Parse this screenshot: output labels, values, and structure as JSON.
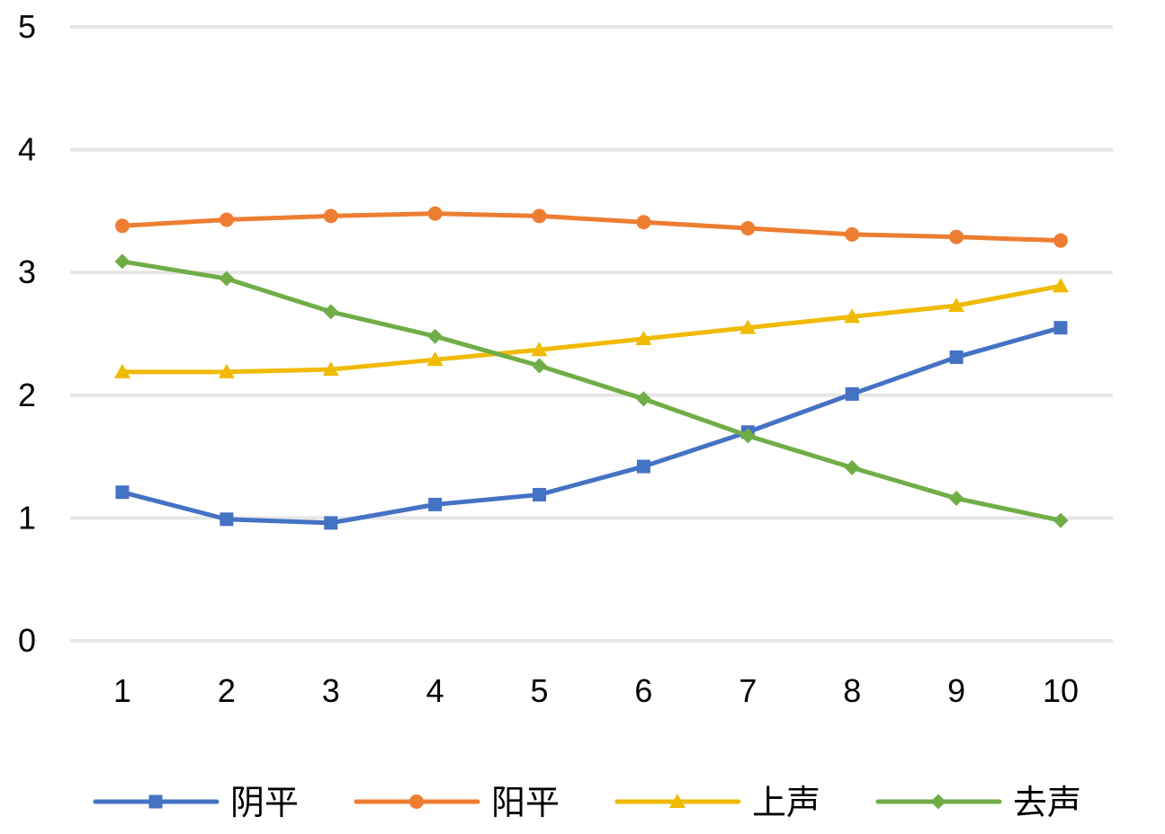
{
  "chart_data": {
    "type": "line",
    "title": "",
    "xlabel": "",
    "ylabel": "",
    "categories": [
      "1",
      "2",
      "3",
      "4",
      "5",
      "6",
      "7",
      "8",
      "9",
      "10"
    ],
    "ylim": [
      0,
      5
    ],
    "y_ticks": [
      "0",
      "1",
      "2",
      "3",
      "4",
      "5"
    ],
    "grid": "horizontal",
    "legend_position": "bottom",
    "series": [
      {
        "name": "阴平",
        "color": "#4472C4",
        "marker": "square",
        "values": [
          1.21,
          0.99,
          0.96,
          1.11,
          1.19,
          1.42,
          1.7,
          2.01,
          2.31,
          2.55
        ]
      },
      {
        "name": "阳平",
        "color": "#ED7D31",
        "marker": "circle",
        "values": [
          3.38,
          3.43,
          3.46,
          3.48,
          3.46,
          3.41,
          3.36,
          3.31,
          3.29,
          3.26
        ]
      },
      {
        "name": "上声",
        "color": "#F0BA00",
        "marker": "triangle",
        "values": [
          2.19,
          2.19,
          2.21,
          2.29,
          2.37,
          2.46,
          2.55,
          2.64,
          2.73,
          2.89
        ]
      },
      {
        "name": "去声",
        "color": "#70AD47",
        "marker": "diamond",
        "values": [
          3.09,
          2.95,
          2.68,
          2.48,
          2.24,
          1.97,
          1.67,
          1.41,
          1.16,
          0.98
        ]
      }
    ]
  }
}
